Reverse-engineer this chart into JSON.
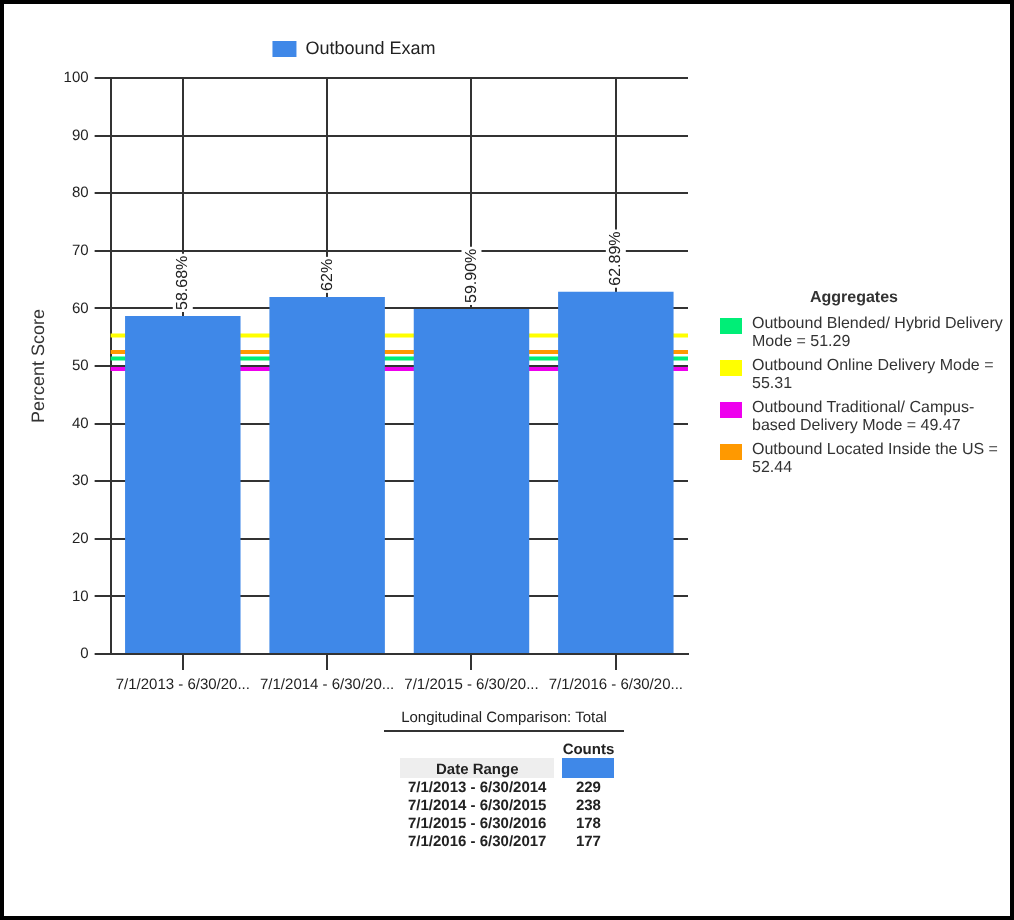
{
  "chart_data": {
    "type": "bar",
    "ylabel": "Percent Score",
    "legend": "top",
    "legend_title": "Aggregates",
    "grid": true,
    "categories": [
      "7/1/2013 - 6/30/20...",
      "7/1/2014 - 6/30/20...",
      "7/1/2015 - 6/30/20...",
      "7/1/2016 - 6/30/20..."
    ],
    "series": [
      {
        "name": "Outbound Exam",
        "color": "#3f88e8",
        "values": [
          58.68,
          62,
          59.9,
          62.89
        ],
        "value_labels": [
          "58.68%",
          "62%",
          "59.90%",
          "62.89%"
        ]
      }
    ],
    "ylim": [
      0,
      100
    ],
    "yticks": [
      0,
      10,
      20,
      30,
      40,
      50,
      60,
      70,
      80,
      90,
      100
    ],
    "ref_lines": [
      {
        "axis": "y",
        "value": 51.29,
        "label": "Outbound Blended/ Hybrid Delivery Mode = 51.29",
        "color": "#00ee77"
      },
      {
        "axis": "y",
        "value": 55.31,
        "label": "Outbound Online Delivery Mode = 55.31",
        "color": "#ffff00"
      },
      {
        "axis": "y",
        "value": 49.47,
        "label": "Outbound Traditional/ Campus-based Delivery Mode = 49.47",
        "color": "#ee00ee"
      },
      {
        "axis": "y",
        "value": 52.44,
        "label": "Outbound Located Inside the US = 52.44",
        "color": "#ff9900"
      }
    ],
    "annotations": [
      "Longitudinal Comparison: Total",
      "Counts",
      "Date Range",
      "7/1/2013 - 6/30/2014",
      "229",
      "7/1/2014 - 6/30/2015",
      "238",
      "7/1/2015 - 6/30/2016",
      "178",
      "7/1/2016 - 6/30/2017",
      "177"
    ]
  }
}
